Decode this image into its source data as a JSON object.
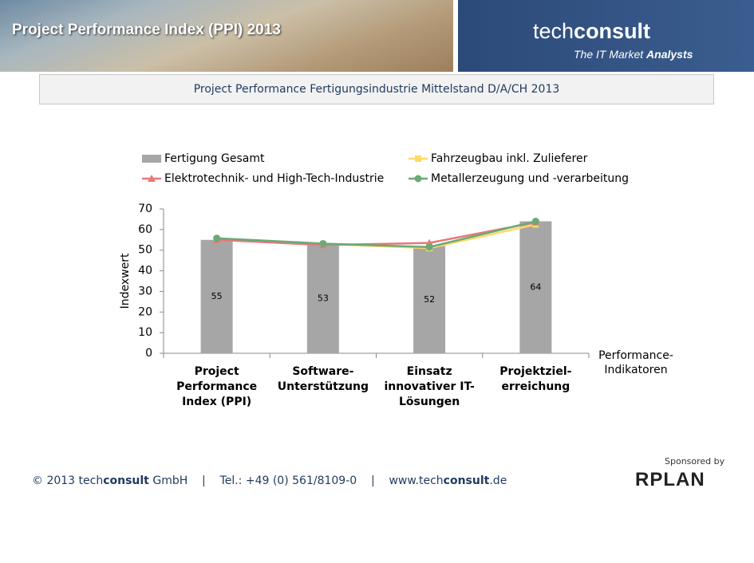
{
  "header": {
    "title": "Project Performance Index (PPI) 2013",
    "logo": {
      "parts": [
        {
          "text": "tech"
        },
        {
          "text": "consult",
          "bold": true
        }
      ]
    },
    "tagline": {
      "parts": [
        {
          "text": "The IT Market "
        },
        {
          "text": "Analysts",
          "bold": true
        }
      ]
    },
    "subtitle": "Project Performance Fertigungsindustrie Mittelstand D/A/CH 2013"
  },
  "chart_data": {
    "type": "bar",
    "categories": [
      "Project Performance Index (PPI)",
      "Software-Unterstützung",
      "Einsatz innovativer IT-Lösungen",
      "Projektziel-erreichung"
    ],
    "y_label": "Indexwert",
    "x_label": "Performance-Indikatoren",
    "ylim": [
      0,
      70
    ],
    "yticks": [
      0,
      10,
      20,
      30,
      40,
      50,
      60,
      70
    ],
    "grid": false,
    "series": [
      {
        "name": "Fertigung Gesamt",
        "type": "bar",
        "color": "#a6a6a6",
        "values": [
          55,
          53,
          52,
          64
        ]
      },
      {
        "name": "Fahrzeugbau inkl. Zulieferer",
        "type": "line",
        "marker": "square",
        "color": "#ffd966",
        "values": [
          55.5,
          53,
          51,
          62.5
        ]
      },
      {
        "name": "Elektrotechnik- und High-Tech-Industrie",
        "type": "line",
        "marker": "triangle",
        "color": "#e87878",
        "values": [
          55,
          52.5,
          53.5,
          63.5
        ]
      },
      {
        "name": "Metallerzeugung und -verarbeitung",
        "type": "line",
        "marker": "circle",
        "color": "#6aaa78",
        "values": [
          55.8,
          53.2,
          51.5,
          64
        ]
      }
    ]
  },
  "footer": {
    "parts": [
      {
        "text": "© 2013 tech"
      },
      {
        "text": "consult",
        "bold": true
      },
      {
        "text": " GmbH    |    Tel.: +49 (0) 561/8109-0    |    www.tech"
      },
      {
        "text": "consult",
        "bold": true
      },
      {
        "text": ".de"
      }
    ],
    "sponsor_label": "Sponsored by",
    "sponsor": "RPLAN"
  }
}
